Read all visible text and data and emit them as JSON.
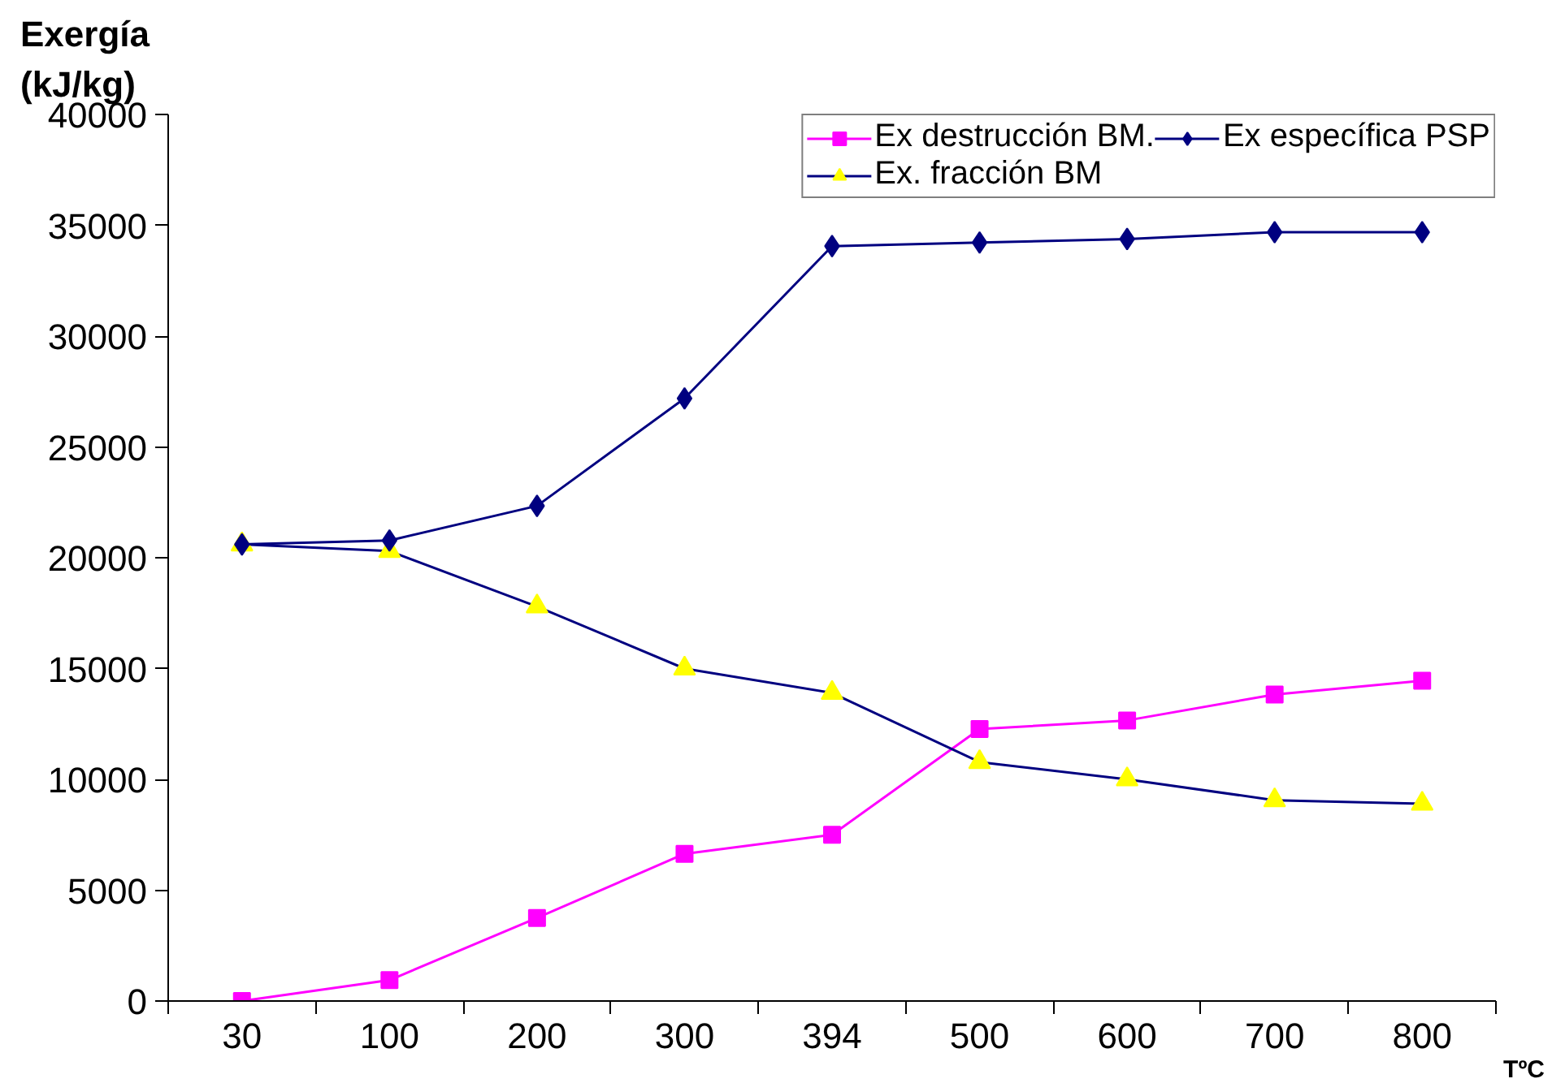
{
  "chart_data": {
    "type": "line",
    "ylabel": "Exergía\n(kJ/kg)",
    "xlabel": "TºC",
    "categories": [
      "30",
      "100",
      "200",
      "300",
      "394",
      "500",
      "600",
      "700",
      "800"
    ],
    "series": [
      {
        "name": "Ex destrucción BM.",
        "color": "#ff00ff",
        "marker": "square",
        "values": [
          0,
          940,
          3750,
          6640,
          7500,
          12270,
          12660,
          13830,
          14450
        ]
      },
      {
        "name": "Ex. fracción BM",
        "color": "#000080",
        "colors": [
          "#ffff00",
          "#ffff00",
          "#ffff00",
          "#ffff00",
          "#ffff00",
          "#ffff00",
          "#ffff00",
          "#ffff00",
          "#ffff00"
        ],
        "marker": "triangle",
        "values": [
          20600,
          20300,
          17800,
          15000,
          13900,
          10780,
          10000,
          9060,
          8900
        ]
      },
      {
        "name": "Ex específica PSP",
        "color": "#000080",
        "marker": "diamond",
        "values": [
          20600,
          20780,
          22340,
          27190,
          34060,
          34220,
          34380,
          34690,
          34690
        ]
      }
    ],
    "ylim": [
      0,
      40000
    ],
    "yticks": [
      0,
      5000,
      10000,
      15000,
      20000,
      25000,
      30000,
      35000,
      40000
    ],
    "grid": false,
    "legend": "top right"
  }
}
